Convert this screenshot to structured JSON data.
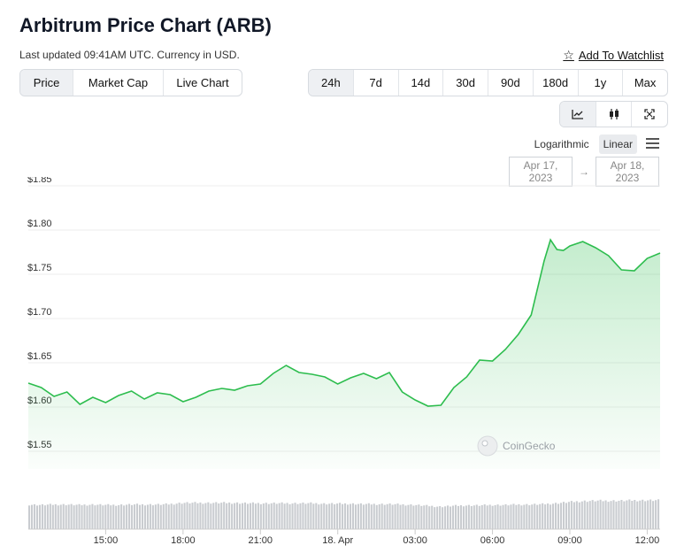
{
  "header": {
    "title": "Arbitrum Price Chart (ARB)",
    "updated": "Last updated 09:41AM UTC. Currency in USD.",
    "watchlist_label": "Add To Watchlist"
  },
  "chart_tabs": [
    {
      "label": "Price",
      "active": true
    },
    {
      "label": "Market Cap",
      "active": false
    },
    {
      "label": "Live Chart",
      "active": false
    }
  ],
  "range_tabs": [
    {
      "label": "24h",
      "active": true
    },
    {
      "label": "7d",
      "active": false
    },
    {
      "label": "14d",
      "active": false
    },
    {
      "label": "30d",
      "active": false
    },
    {
      "label": "90d",
      "active": false
    },
    {
      "label": "180d",
      "active": false
    },
    {
      "label": "1y",
      "active": false
    },
    {
      "label": "Max",
      "active": false
    }
  ],
  "view_icons": [
    "line-chart-icon",
    "candlestick-icon",
    "fullscreen-icon"
  ],
  "scale": {
    "logarithmic": "Logarithmic",
    "linear": "Linear",
    "active": "linear"
  },
  "date_range": {
    "from": "Apr 17, 2023",
    "arrow": "→",
    "to": "Apr 18, 2023"
  },
  "watermark": "CoinGecko",
  "colors": {
    "line": "#2dbd4e",
    "volume": "#c9ccd0",
    "grid": "#eeeeee"
  },
  "chart_data": {
    "type": "area",
    "x_start": "Apr 17, 2023 12:00 UTC",
    "x_end": "Apr 18, 2023 12:15 UTC",
    "x_ticks": [
      {
        "t": 3.0,
        "label": "15:00"
      },
      {
        "t": 6.0,
        "label": "18:00"
      },
      {
        "t": 9.0,
        "label": "21:00"
      },
      {
        "t": 12.0,
        "label": "18. Apr"
      },
      {
        "t": 15.0,
        "label": "03:00"
      },
      {
        "t": 18.0,
        "label": "06:00"
      },
      {
        "t": 21.0,
        "label": "09:00"
      },
      {
        "t": 24.0,
        "label": "12:00"
      }
    ],
    "x": [
      0,
      0.5,
      1,
      1.5,
      2,
      2.5,
      3,
      3.5,
      4,
      4.5,
      5,
      5.5,
      6,
      6.5,
      7,
      7.5,
      8,
      8.5,
      9,
      9.5,
      10,
      10.5,
      11,
      11.5,
      12,
      12.5,
      13,
      13.5,
      14,
      14.5,
      15,
      15.5,
      16,
      16.5,
      17,
      17.5,
      18,
      18.5,
      19,
      19.5,
      20,
      20.25,
      20.5,
      20.75,
      21,
      21.5,
      22,
      22.5,
      23,
      23.5,
      24,
      24.5
    ],
    "y": [
      1.627,
      1.622,
      1.612,
      1.617,
      1.603,
      1.611,
      1.605,
      1.613,
      1.618,
      1.609,
      1.616,
      1.614,
      1.606,
      1.611,
      1.618,
      1.621,
      1.619,
      1.624,
      1.626,
      1.638,
      1.647,
      1.639,
      1.637,
      1.634,
      1.626,
      1.633,
      1.638,
      1.632,
      1.639,
      1.617,
      1.608,
      1.601,
      1.602,
      1.622,
      1.634,
      1.653,
      1.652,
      1.665,
      1.682,
      1.704,
      1.765,
      1.789,
      1.778,
      1.777,
      1.782,
      1.787,
      1.78,
      1.771,
      1.755,
      1.754,
      1.768,
      1.774
    ],
    "volume": [
      0.58,
      0.57,
      0.58,
      0.58,
      0.57,
      0.58,
      0.57,
      0.57,
      0.58,
      0.58,
      0.58,
      0.59,
      0.62,
      0.62,
      0.62,
      0.62,
      0.62,
      0.61,
      0.61,
      0.61,
      0.61,
      0.61,
      0.61,
      0.6,
      0.6,
      0.6,
      0.59,
      0.59,
      0.59,
      0.58,
      0.57,
      0.55,
      0.53,
      0.55,
      0.56,
      0.56,
      0.57,
      0.57,
      0.58,
      0.58,
      0.59,
      0.61,
      0.64,
      0.66,
      0.67,
      0.67,
      0.67,
      0.68,
      0.68,
      0.68,
      0.69,
      0.7
    ],
    "ylim": [
      1.53,
      1.86
    ],
    "y_ticks": [
      1.55,
      1.6,
      1.65,
      1.7,
      1.75,
      1.8,
      1.85
    ],
    "y_tick_labels": [
      "$1.55",
      "$1.60",
      "$1.65",
      "$1.70",
      "$1.75",
      "$1.80",
      "$1.85"
    ],
    "grid": true,
    "legend": "none"
  }
}
